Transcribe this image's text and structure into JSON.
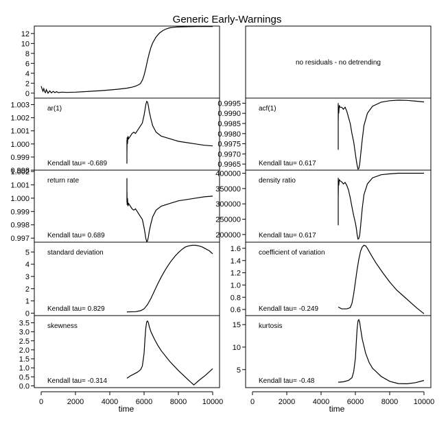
{
  "title": "Generic Early-Warnings",
  "xlabel": "time",
  "panel_text": {
    "no_residuals": "no residuals - no detrending"
  },
  "chart_data": [
    {
      "id": "series",
      "type": "line",
      "label": "",
      "kendall": "",
      "ylim": [
        -1,
        13.5
      ],
      "yticks": [
        0,
        2,
        4,
        6,
        8,
        10,
        12
      ],
      "x": [
        0,
        100,
        150,
        200,
        250,
        300,
        400,
        500,
        600,
        700,
        800,
        900,
        1000,
        1200,
        1500,
        2000,
        2500,
        3000,
        3500,
        4000,
        4500,
        5000,
        5300,
        5500,
        5700,
        5800,
        5900,
        6000,
        6100,
        6200,
        6300,
        6400,
        6500,
        6700,
        6900,
        7100,
        7300,
        7500,
        7700,
        7900,
        8200,
        8600,
        9000,
        9500,
        10000
      ],
      "y": [
        1.4,
        0.4,
        0.9,
        0.3,
        0.1,
        0.7,
        0.0,
        0.45,
        0.05,
        0.35,
        0.1,
        0.3,
        0.1,
        0.2,
        0.15,
        0.2,
        0.3,
        0.4,
        0.5,
        0.65,
        0.8,
        1.0,
        1.2,
        1.4,
        1.7,
        2.0,
        2.6,
        3.6,
        5.0,
        6.6,
        8.0,
        9.2,
        10.1,
        11.3,
        12.1,
        12.6,
        12.95,
        13.15,
        13.25,
        13.3,
        13.35,
        13.38,
        13.4,
        13.4,
        13.4
      ]
    },
    {
      "id": "ar1",
      "type": "line",
      "label": "ar(1)",
      "kendall": "Kendall tau= -0.689",
      "ylim": [
        0.998,
        1.0035
      ],
      "yticks": [
        0.998,
        0.999,
        1.0,
        1.001,
        1.002,
        1.003
      ],
      "ytick_labels": [
        "0.998",
        "0.999",
        "1.000",
        "1.001",
        "1.002",
        "1.003"
      ],
      "x": [
        5000,
        5001,
        5002,
        5010,
        5030,
        5060,
        5100,
        5200,
        5300,
        5400,
        5500,
        5600,
        5700,
        5800,
        5900,
        6000,
        6050,
        6100,
        6150,
        6200,
        6250,
        6300,
        6400,
        6500,
        6700,
        7000,
        7500,
        8000,
        8500,
        9000,
        9500,
        10000
      ],
      "y": [
        0.9985,
        1.0003,
        0.9995,
        1.0005,
        1.0,
        1.0006,
        1.0004,
        1.0006,
        1.0008,
        1.0009,
        1.0008,
        1.001,
        1.0012,
        1.0014,
        1.0016,
        1.0022,
        1.0026,
        1.003,
        1.00325,
        1.0032,
        1.0029,
        1.0025,
        1.0019,
        1.0014,
        1.0009,
        1.0006,
        1.0004,
        1.0002,
        1.0001,
        1.0,
        0.9999,
        0.99985
      ]
    },
    {
      "id": "return_rate",
      "type": "line",
      "label": "return rate",
      "kendall": "Kendall tau= 0.689",
      "ylim": [
        0.9967,
        1.0021
      ],
      "yticks": [
        0.997,
        0.998,
        0.999,
        1.0,
        1.001,
        1.002
      ],
      "ytick_labels": [
        "0.997",
        "0.998",
        "0.999",
        "1.000",
        "1.001",
        "1.002"
      ],
      "x": [
        5000,
        5001,
        5002,
        5010,
        5030,
        5060,
        5100,
        5200,
        5300,
        5400,
        5500,
        5600,
        5700,
        5800,
        5900,
        6000,
        6050,
        6100,
        6150,
        6200,
        6250,
        6300,
        6400,
        6500,
        6700,
        7000,
        7500,
        8000,
        8500,
        9000,
        9500,
        10000
      ],
      "y": [
        1.0015,
        0.9997,
        1.0005,
        0.9995,
        1.0,
        0.9994,
        0.9996,
        0.9994,
        0.9992,
        0.9991,
        0.9992,
        0.999,
        0.9988,
        0.9986,
        0.9984,
        0.9978,
        0.9974,
        0.997,
        0.99675,
        0.9968,
        0.9971,
        0.9975,
        0.9981,
        0.9986,
        0.9991,
        0.9994,
        0.9996,
        0.9998,
        0.9999,
        1.0,
        1.0001,
        1.00015
      ]
    },
    {
      "id": "sd",
      "type": "line",
      "label": "standard deviation",
      "kendall": "Kendall tau= 0.829",
      "ylim": [
        -0.2,
        5.8
      ],
      "yticks": [
        0,
        1,
        2,
        3,
        4,
        5
      ],
      "x": [
        5000,
        5500,
        5800,
        6000,
        6200,
        6400,
        6600,
        6800,
        7000,
        7200,
        7400,
        7600,
        7800,
        8000,
        8200,
        8400,
        8600,
        8800,
        9000,
        9200,
        9400,
        9600,
        9800,
        10000
      ],
      "y": [
        0.1,
        0.12,
        0.2,
        0.35,
        0.7,
        1.2,
        1.8,
        2.4,
        2.95,
        3.45,
        3.9,
        4.3,
        4.65,
        4.95,
        5.2,
        5.4,
        5.5,
        5.55,
        5.55,
        5.5,
        5.4,
        5.25,
        5.1,
        4.85
      ]
    },
    {
      "id": "skewness",
      "type": "line",
      "label": "skewness",
      "kendall": "Kendall tau= -0.314",
      "ylim": [
        -0.1,
        3.9
      ],
      "yticks": [
        0.0,
        0.5,
        1.0,
        1.5,
        2.0,
        2.5,
        3.0,
        3.5
      ],
      "ytick_labels": [
        "0.0",
        "0.5",
        "1.0",
        "1.5",
        "2.0",
        "2.5",
        "3.0",
        "3.5"
      ],
      "x": [
        5000,
        5200,
        5400,
        5600,
        5800,
        5900,
        6000,
        6050,
        6100,
        6150,
        6200,
        6250,
        6300,
        6400,
        6600,
        6800,
        7000,
        7500,
        8000,
        8500,
        8900,
        9200,
        9600,
        10000
      ],
      "y": [
        0.42,
        0.55,
        0.65,
        0.75,
        0.9,
        1.1,
        1.8,
        2.6,
        3.2,
        3.55,
        3.6,
        3.5,
        3.3,
        3.0,
        2.6,
        2.25,
        1.95,
        1.35,
        0.85,
        0.4,
        0.05,
        0.3,
        0.6,
        0.95
      ]
    },
    {
      "id": "acf1",
      "type": "line",
      "label": "acf(1)",
      "kendall": "Kendall tau= 0.617",
      "ylim": [
        0.9962,
        0.99975
      ],
      "yticks": [
        0.9965,
        0.997,
        0.9975,
        0.998,
        0.9985,
        0.999,
        0.9995
      ],
      "ytick_labels": [
        "0.9965",
        "0.9970",
        "0.9975",
        "0.9980",
        "0.9985",
        "0.9990",
        "0.9995"
      ],
      "x": [
        5000,
        5001,
        5002,
        5010,
        5030,
        5060,
        5100,
        5200,
        5300,
        5400,
        5500,
        5600,
        5700,
        5800,
        5900,
        6000,
        6050,
        6100,
        6150,
        6200,
        6250,
        6300,
        6400,
        6500,
        6700,
        7000,
        7500,
        8000,
        8500,
        9000,
        9500,
        10000
      ],
      "y": [
        0.9972,
        0.9995,
        0.9987,
        0.9993,
        0.999,
        0.9994,
        0.9993,
        0.9993,
        0.9992,
        0.9993,
        0.9991,
        0.9988,
        0.9985,
        0.998,
        0.9976,
        0.997,
        0.9967,
        0.99645,
        0.99625,
        0.99628,
        0.9965,
        0.9969,
        0.9977,
        0.9984,
        0.999,
        0.99935,
        0.99955,
        0.99962,
        0.99965,
        0.99964,
        0.9996,
        0.99956
      ]
    },
    {
      "id": "density_ratio",
      "type": "line",
      "label": "density ratio",
      "kendall": "Kendall tau= 0.617",
      "ylim": [
        175000,
        410000
      ],
      "yticks": [
        200000,
        250000,
        300000,
        350000,
        400000
      ],
      "x": [
        5000,
        5001,
        5002,
        5010,
        5030,
        5060,
        5100,
        5200,
        5300,
        5400,
        5500,
        5600,
        5700,
        5800,
        5900,
        6000,
        6050,
        6100,
        6150,
        6200,
        6250,
        6300,
        6400,
        6500,
        6700,
        7000,
        7500,
        8000,
        8500,
        9000,
        9500,
        10000
      ],
      "y": [
        230000,
        385000,
        330000,
        375000,
        360000,
        380000,
        375000,
        372000,
        365000,
        370000,
        360000,
        345000,
        320000,
        290000,
        262000,
        238000,
        222000,
        200000,
        185000,
        187000,
        198000,
        225000,
        285000,
        330000,
        365000,
        385000,
        395000,
        398000,
        400000,
        400000,
        400000,
        400000
      ]
    },
    {
      "id": "cv",
      "type": "line",
      "label": "coefficient of variation",
      "kendall": "Kendall tau= -0.249",
      "ylim": [
        0.5,
        1.7
      ],
      "yticks": [
        0.6,
        0.8,
        1.0,
        1.2,
        1.4,
        1.6
      ],
      "ytick_labels": [
        "0.6",
        "0.8",
        "1.0",
        "1.2",
        "1.4",
        "1.6"
      ],
      "x": [
        5000,
        5200,
        5500,
        5700,
        5800,
        5900,
        6000,
        6100,
        6200,
        6300,
        6400,
        6500,
        6600,
        6700,
        6900,
        7200,
        7600,
        8000,
        8400,
        8800,
        9200,
        9600,
        10000
      ],
      "y": [
        0.64,
        0.61,
        0.61,
        0.63,
        0.7,
        0.85,
        1.05,
        1.25,
        1.42,
        1.55,
        1.62,
        1.65,
        1.64,
        1.6,
        1.5,
        1.36,
        1.2,
        1.05,
        0.92,
        0.82,
        0.72,
        0.62,
        0.53
      ]
    },
    {
      "id": "kurtosis",
      "type": "line",
      "label": "kurtosis",
      "kendall": "Kendall tau= -0.48",
      "ylim": [
        1,
        17
      ],
      "yticks": [
        5,
        10,
        15
      ],
      "x": [
        5000,
        5300,
        5600,
        5800,
        5900,
        6000,
        6050,
        6100,
        6150,
        6200,
        6250,
        6300,
        6400,
        6600,
        6800,
        7000,
        7500,
        8000,
        8500,
        9000,
        9500,
        10000
      ],
      "y": [
        2.2,
        2.3,
        2.6,
        3.2,
        4.5,
        7.5,
        11.0,
        14.0,
        15.8,
        16.1,
        15.5,
        14.2,
        11.8,
        8.6,
        6.6,
        5.3,
        3.5,
        2.4,
        1.9,
        1.85,
        2.1,
        2.6
      ]
    }
  ],
  "x_axis": {
    "lim": [
      -400,
      10400
    ],
    "ticks": [
      0,
      2000,
      4000,
      6000,
      8000,
      10000
    ]
  }
}
